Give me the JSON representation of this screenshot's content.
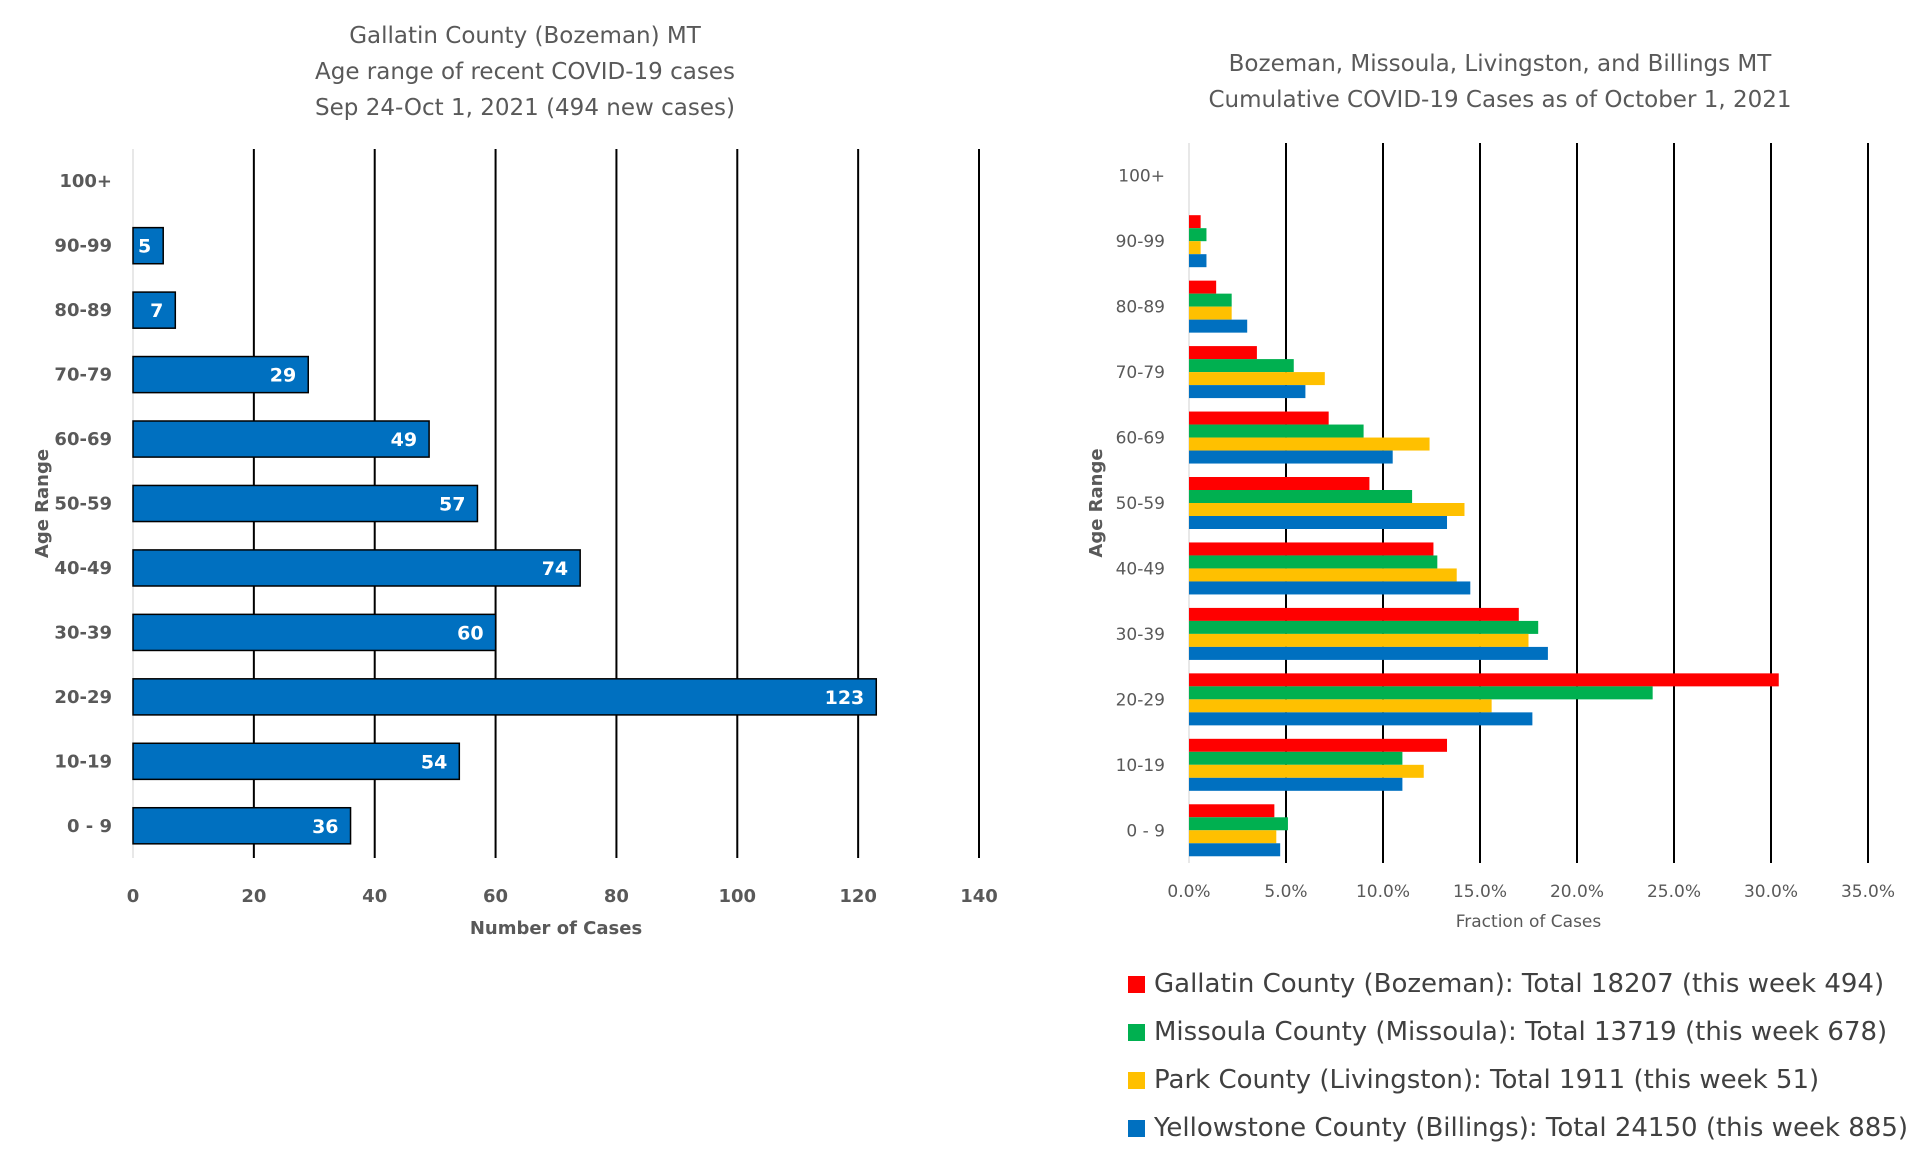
{
  "chart_data": [
    {
      "type": "bar",
      "orientation": "horizontal",
      "title_lines": [
        "Gallatin County (Bozeman) MT",
        "Age range of recent COVID-19 cases",
        "Sep 24-Oct 1, 2021 (494 new cases)"
      ],
      "xlabel": "Number of Cases",
      "ylabel": "Age Range",
      "categories": [
        "100+",
        "90-99",
        "80-89",
        "70-79",
        "60-69",
        "50-59",
        "40-49",
        "30-39",
        "20-29",
        "10-19",
        "0 - 9"
      ],
      "values": [
        0,
        5,
        7,
        29,
        49,
        57,
        74,
        60,
        123,
        54,
        36
      ],
      "data_labels": [
        "",
        "5",
        "7",
        "29",
        "49",
        "57",
        "74",
        "60",
        "123",
        "54",
        "36"
      ],
      "xlim": [
        0,
        140
      ],
      "xticks": [
        "0",
        "20",
        "40",
        "60",
        "80",
        "100",
        "120",
        "140"
      ],
      "grid": "vertical",
      "bar_color": "#0070C0"
    },
    {
      "type": "bar",
      "orientation": "horizontal",
      "title_lines": [
        "Bozeman, Missoula, Livingston, and Billings MT",
        "Cumulative COVID-19 Cases as of October 1, 2021"
      ],
      "xlabel": "Fraction of Cases",
      "ylabel": "Age Range",
      "categories": [
        "100+",
        "90-99",
        "80-89",
        "70-79",
        "60-69",
        "50-59",
        "40-49",
        "30-39",
        "20-29",
        "10-19",
        "0 - 9"
      ],
      "xlim": [
        0,
        0.35
      ],
      "xticks": [
        "0.0%",
        "5.0%",
        "10.0%",
        "15.0%",
        "20.0%",
        "25.0%",
        "30.0%",
        "35.0%"
      ],
      "grid": "vertical",
      "legend_position": "bottom",
      "series": [
        {
          "name": "Gallatin County (Bozeman): Total 18207 (this week 494)",
          "color": "#FF0000",
          "values": [
            0.0,
            0.006,
            0.014,
            0.035,
            0.072,
            0.093,
            0.126,
            0.17,
            0.304,
            0.133,
            0.044
          ]
        },
        {
          "name": "Missoula County (Missoula): Total 13719 (this week 678)",
          "color": "#00B050",
          "values": [
            0.0,
            0.009,
            0.022,
            0.054,
            0.09,
            0.115,
            0.128,
            0.18,
            0.239,
            0.11,
            0.051
          ]
        },
        {
          "name": "Park County (Livingston): Total 1911 (this week 51)",
          "color": "#FFC000",
          "values": [
            0.0,
            0.006,
            0.022,
            0.07,
            0.124,
            0.142,
            0.138,
            0.175,
            0.156,
            0.121,
            0.045
          ]
        },
        {
          "name": "Yellowstone County (Billings): Total 24150 (this week 885)",
          "color": "#0070C0",
          "values": [
            0.0,
            0.009,
            0.03,
            0.06,
            0.105,
            0.133,
            0.145,
            0.185,
            0.177,
            0.11,
            0.047
          ]
        }
      ]
    }
  ]
}
